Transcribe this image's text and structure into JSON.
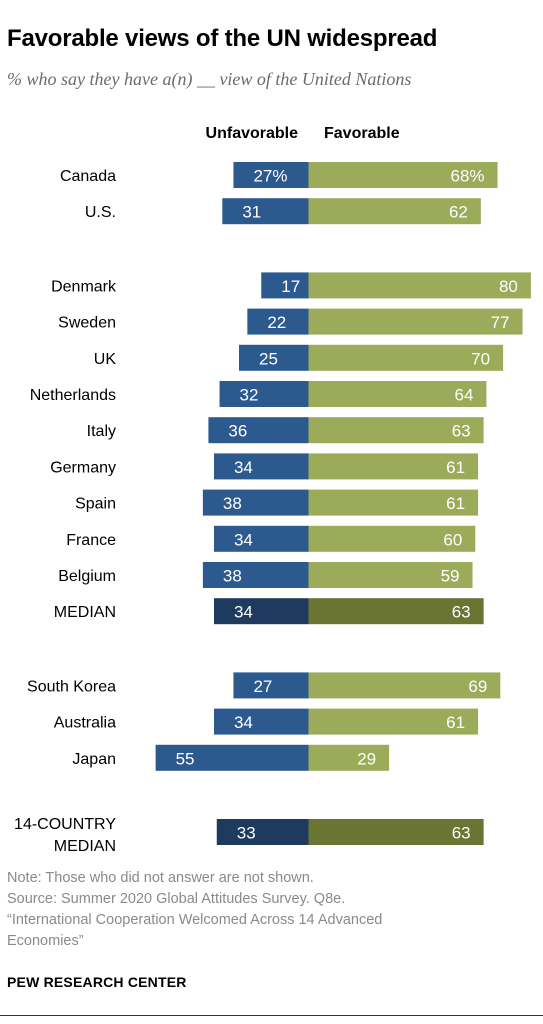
{
  "header": {
    "title": "Favorable views of the UN widespread",
    "subtitle": "% who say they have a(n) __ view of the United Nations"
  },
  "chart_data": {
    "type": "bar",
    "orientation": "diverging-horizontal",
    "series": [
      {
        "name": "Unfavorable",
        "color": "#2c5a8f",
        "median_color": "#1e3a5f",
        "direction": "left"
      },
      {
        "name": "Favorable",
        "color": "#9bab5a",
        "median_color": "#6b7533",
        "direction": "right"
      }
    ],
    "rows": [
      {
        "label": "Canada",
        "unfavorable": 27,
        "favorable": 68,
        "unfavorable_label": "27%",
        "favorable_label": "68%",
        "group": 1
      },
      {
        "label": "U.S.",
        "unfavorable": 31,
        "favorable": 62,
        "unfavorable_label": "31",
        "favorable_label": "62",
        "group": 1
      },
      {
        "label": "Denmark",
        "unfavorable": 17,
        "favorable": 80,
        "unfavorable_label": "17",
        "favorable_label": "80",
        "group": 2
      },
      {
        "label": "Sweden",
        "unfavorable": 22,
        "favorable": 77,
        "unfavorable_label": "22",
        "favorable_label": "77",
        "group": 2
      },
      {
        "label": "UK",
        "unfavorable": 25,
        "favorable": 70,
        "unfavorable_label": "25",
        "favorable_label": "70",
        "group": 2
      },
      {
        "label": "Netherlands",
        "unfavorable": 32,
        "favorable": 64,
        "unfavorable_label": "32",
        "favorable_label": "64",
        "group": 2
      },
      {
        "label": "Italy",
        "unfavorable": 36,
        "favorable": 63,
        "unfavorable_label": "36",
        "favorable_label": "63",
        "group": 2
      },
      {
        "label": "Germany",
        "unfavorable": 34,
        "favorable": 61,
        "unfavorable_label": "34",
        "favorable_label": "61",
        "group": 2
      },
      {
        "label": "Spain",
        "unfavorable": 38,
        "favorable": 61,
        "unfavorable_label": "38",
        "favorable_label": "61",
        "group": 2
      },
      {
        "label": "France",
        "unfavorable": 34,
        "favorable": 60,
        "unfavorable_label": "34",
        "favorable_label": "60",
        "group": 2
      },
      {
        "label": "Belgium",
        "unfavorable": 38,
        "favorable": 59,
        "unfavorable_label": "38",
        "favorable_label": "59",
        "group": 2
      },
      {
        "label": "MEDIAN",
        "unfavorable": 34,
        "favorable": 63,
        "unfavorable_label": "34",
        "favorable_label": "63",
        "group": 2,
        "median": true
      },
      {
        "label": "South Korea",
        "unfavorable": 27,
        "favorable": 69,
        "unfavorable_label": "27",
        "favorable_label": "69",
        "group": 3
      },
      {
        "label": "Australia",
        "unfavorable": 34,
        "favorable": 61,
        "unfavorable_label": "34",
        "favorable_label": "61",
        "group": 3
      },
      {
        "label": "Japan",
        "unfavorable": 55,
        "favorable": 29,
        "unfavorable_label": "55",
        "favorable_label": "29",
        "group": 3
      },
      {
        "label": "14-COUNTRY MEDIAN",
        "label_lines": [
          "14-COUNTRY",
          "MEDIAN"
        ],
        "unfavorable": 33,
        "favorable": 63,
        "unfavorable_label": "33",
        "favorable_label": "63",
        "group": 4,
        "median": true
      }
    ]
  },
  "footer": {
    "note": "Note: Those who did not answer are not shown.",
    "source_lines": [
      "Source: Summer 2020 Global Attitudes Survey. Q8e.",
      "“International Cooperation Welcomed Across 14 Advanced",
      "Economies”"
    ],
    "brand": "PEW RESEARCH CENTER"
  }
}
